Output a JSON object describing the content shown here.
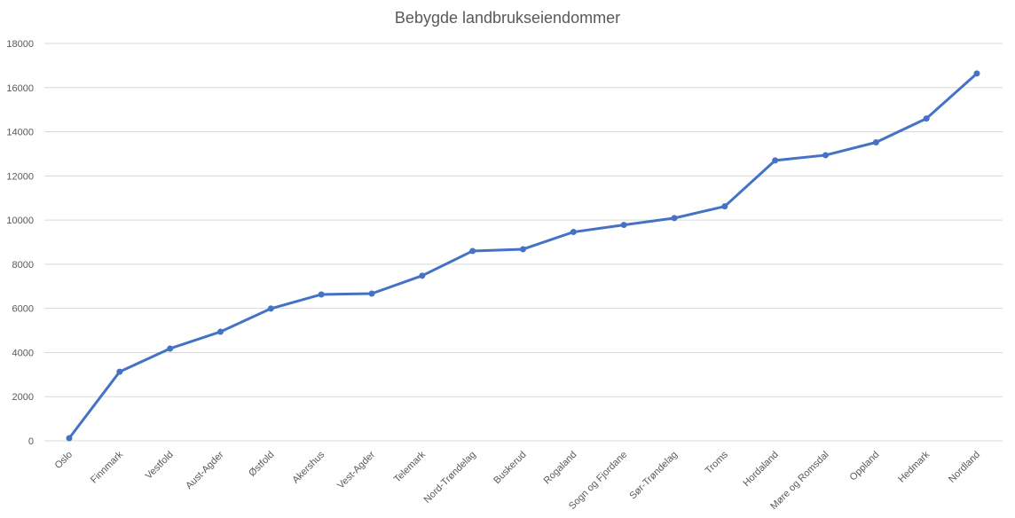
{
  "chart_data": {
    "type": "line",
    "title": "Bebygde landbrukseiendommer",
    "xlabel": "",
    "ylabel": "",
    "ylim": [
      0,
      18000
    ],
    "y_ticks": [
      "0",
      "2000",
      "4000",
      "6000",
      "8000",
      "10000",
      "12000",
      "14000",
      "16000",
      "18000"
    ],
    "y_tick_values": [
      0,
      2000,
      4000,
      6000,
      8000,
      10000,
      12000,
      14000,
      16000,
      18000
    ],
    "grid": true,
    "legend": "none",
    "categories": [
      "Oslo",
      "Finnmark",
      "Vestfold",
      "Aust-Agder",
      "Østfold",
      "Akershus",
      "Vest-Agder",
      "Telemark",
      "Nord-Trøndelag",
      "Buskerud",
      "Rogaland",
      "Sogn og Fjordane",
      "Sør-Trøndelag",
      "Troms",
      "Hordaland",
      "Møre og Romsdal",
      "Oppland",
      "Hedmark",
      "Nordland"
    ],
    "series": [
      {
        "values": [
          120,
          3130,
          4180,
          4940,
          5990,
          6630,
          6670,
          7480,
          8600,
          8680,
          9460,
          9780,
          10090,
          10620,
          12700,
          12940,
          13520,
          14600,
          16640
        ]
      }
    ],
    "colors": {
      "line": "#4472C4",
      "grid": "#D9D9D9",
      "text": "#595959"
    }
  }
}
